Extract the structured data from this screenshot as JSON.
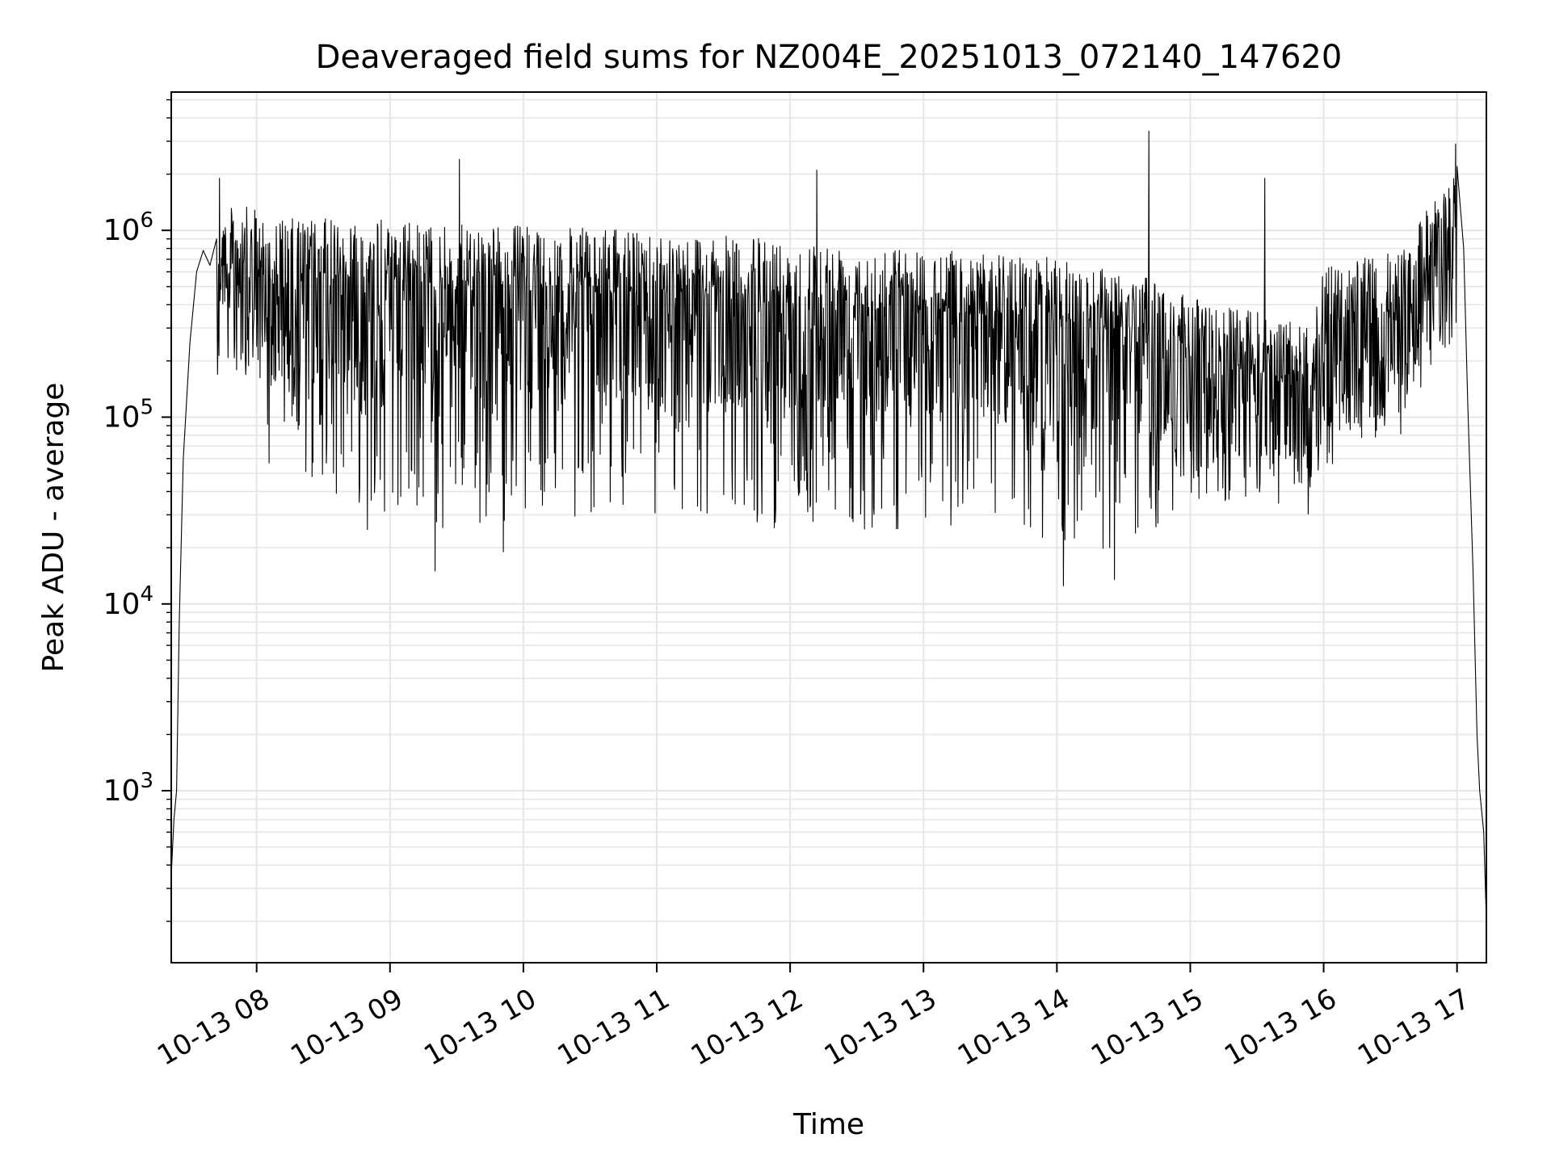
{
  "chart_data": {
    "type": "line",
    "title": "Deaveraged field sums for NZ004E_20251013_072140_147620",
    "xlabel": "Time",
    "ylabel": "Peak ADU - average",
    "yscale": "log",
    "grid": true,
    "line_color": "#000000",
    "grid_color": "#e6e6e6",
    "xlim_hours": [
      7.36,
      17.22
    ],
    "ylim": [
      120,
      5500000
    ],
    "x_ticks": [
      {
        "hour": 8,
        "label": "10-13 08"
      },
      {
        "hour": 9,
        "label": "10-13 09"
      },
      {
        "hour": 10,
        "label": "10-13 10"
      },
      {
        "hour": 11,
        "label": "10-13 11"
      },
      {
        "hour": 12,
        "label": "10-13 12"
      },
      {
        "hour": 13,
        "label": "10-13 13"
      },
      {
        "hour": 14,
        "label": "10-13 14"
      },
      {
        "hour": 15,
        "label": "10-13 15"
      },
      {
        "hour": 16,
        "label": "10-13 16"
      },
      {
        "hour": 17,
        "label": "10-13 17"
      }
    ],
    "y_ticks": [
      {
        "value": 1000,
        "base": "10",
        "exp": "3"
      },
      {
        "value": 10000,
        "base": "10",
        "exp": "4"
      },
      {
        "value": 100000,
        "base": "10",
        "exp": "5"
      },
      {
        "value": 1000000,
        "base": "10",
        "exp": "6"
      }
    ],
    "series": [
      {
        "name": "Peak ADU - average",
        "note": "envelope of a dense noisy trace; generated procedurally between low and high bounds",
        "start_ramp": [
          [
            7.36,
            350
          ],
          [
            7.38,
            700
          ],
          [
            7.4,
            1000
          ],
          [
            7.42,
            8000
          ],
          [
            7.45,
            60000
          ],
          [
            7.5,
            250000
          ],
          [
            7.55,
            600000
          ],
          [
            7.6,
            780000
          ],
          [
            7.65,
            650000
          ],
          [
            7.7,
            900000
          ]
        ],
        "end_ramp": [
          [
            17.0,
            2200000
          ],
          [
            17.05,
            800000
          ],
          [
            17.08,
            120000
          ],
          [
            17.12,
            15000
          ],
          [
            17.15,
            2000
          ],
          [
            17.17,
            1000
          ],
          [
            17.2,
            600
          ],
          [
            17.22,
            200
          ]
        ],
        "envelope": [
          {
            "hour": 7.7,
            "low": 400000,
            "high": 1500000
          },
          {
            "hour": 7.95,
            "low": 300000,
            "high": 1500000
          },
          {
            "hour": 8.1,
            "low": 50000,
            "high": 1300000
          },
          {
            "hour": 8.5,
            "low": 40000,
            "high": 1300000
          },
          {
            "hour": 9.0,
            "low": 30000,
            "high": 1300000
          },
          {
            "hour": 9.3,
            "low": 20000,
            "high": 1200000
          },
          {
            "hour": 10.0,
            "low": 30000,
            "high": 1200000
          },
          {
            "hour": 11.0,
            "low": 28000,
            "high": 1100000
          },
          {
            "hour": 12.0,
            "low": 25000,
            "high": 1000000
          },
          {
            "hour": 13.0,
            "low": 25000,
            "high": 900000
          },
          {
            "hour": 14.0,
            "low": 20000,
            "high": 800000
          },
          {
            "hour": 14.5,
            "low": 18000,
            "high": 700000
          },
          {
            "hour": 15.0,
            "low": 35000,
            "high": 500000
          },
          {
            "hour": 15.9,
            "low": 30000,
            "high": 350000
          },
          {
            "hour": 16.0,
            "low": 50000,
            "high": 700000
          },
          {
            "hour": 16.6,
            "low": 80000,
            "high": 900000
          },
          {
            "hour": 16.7,
            "low": 200000,
            "high": 1200000
          },
          {
            "hour": 17.0,
            "low": 400000,
            "high": 2500000
          }
        ],
        "spikes": [
          {
            "hour": 7.72,
            "value": 1900000
          },
          {
            "hour": 9.52,
            "value": 2400000
          },
          {
            "hour": 12.2,
            "value": 2100000
          },
          {
            "hour": 14.69,
            "value": 3400000
          },
          {
            "hour": 15.56,
            "value": 1900000
          },
          {
            "hour": 16.99,
            "value": 2900000
          }
        ],
        "dips": [
          {
            "hour": 9.34,
            "value": 15000
          },
          {
            "hour": 9.85,
            "value": 19000
          },
          {
            "hour": 14.05,
            "value": 12500
          },
          {
            "hour": 14.43,
            "value": 13500
          },
          {
            "hour": 8.83,
            "value": 25000
          }
        ]
      }
    ]
  }
}
